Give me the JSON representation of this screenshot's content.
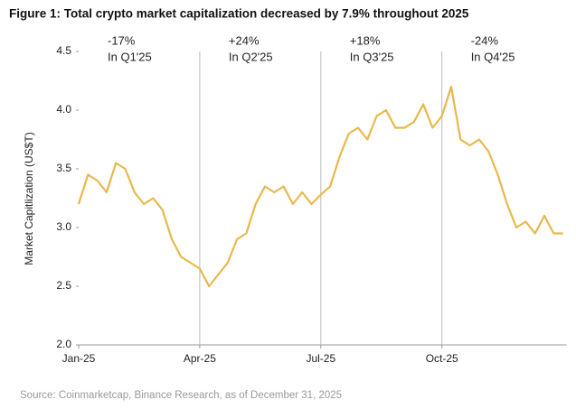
{
  "chart_data": {
    "type": "line",
    "title": "Figure 1: Total crypto market capitalization decreased by 7.9% throughout 2025",
    "y_label": "Market Capitlization (US$T)",
    "source": "Source: Coinmarketcap, Binance Research, as of December 31, 2025",
    "color": "#e8b84a",
    "categories": [
      "Jan-25",
      null,
      null,
      null,
      null,
      null,
      null,
      null,
      null,
      null,
      null,
      null,
      null,
      "Apr-25",
      null,
      null,
      null,
      null,
      null,
      null,
      null,
      null,
      null,
      null,
      null,
      null,
      "Jul-25",
      null,
      null,
      null,
      null,
      null,
      null,
      null,
      null,
      null,
      null,
      null,
      null,
      "Oct-25",
      null,
      null,
      null,
      null,
      null,
      null,
      null,
      null,
      null,
      null,
      null,
      null,
      null
    ],
    "values": [
      3.2,
      3.45,
      3.4,
      3.3,
      3.55,
      3.5,
      3.3,
      3.2,
      3.25,
      3.15,
      2.9,
      2.75,
      2.7,
      2.65,
      2.5,
      2.6,
      2.7,
      2.9,
      2.95,
      3.2,
      3.35,
      3.3,
      3.35,
      3.2,
      3.3,
      3.2,
      3.28,
      3.35,
      3.6,
      3.8,
      3.85,
      3.75,
      3.95,
      4.0,
      3.85,
      3.85,
      3.9,
      4.05,
      3.85,
      3.95,
      4.2,
      3.75,
      3.7,
      3.75,
      3.65,
      3.45,
      3.2,
      3.0,
      3.05,
      2.95,
      3.1,
      2.95,
      2.95
    ],
    "ylim": [
      2,
      4.5
    ],
    "yticks": [
      {
        "value": 2,
        "label": "2.0"
      },
      2.5,
      {
        "value": 3,
        "label": "3.0"
      },
      3.5,
      {
        "value": 4,
        "label": "4.0"
      },
      4.5
    ],
    "annotations": [
      {
        "change": "-17%",
        "period": "In Q1'25",
        "color": "#e0453a"
      },
      {
        "change": "+24%",
        "period": "In Q2'25",
        "color": "#3fa55a"
      },
      {
        "change": "+18%",
        "period": "In Q3'25",
        "color": "#3fa55a"
      },
      {
        "change": "-24%",
        "period": "In Q4'25",
        "color": "#e0453a"
      }
    ]
  }
}
